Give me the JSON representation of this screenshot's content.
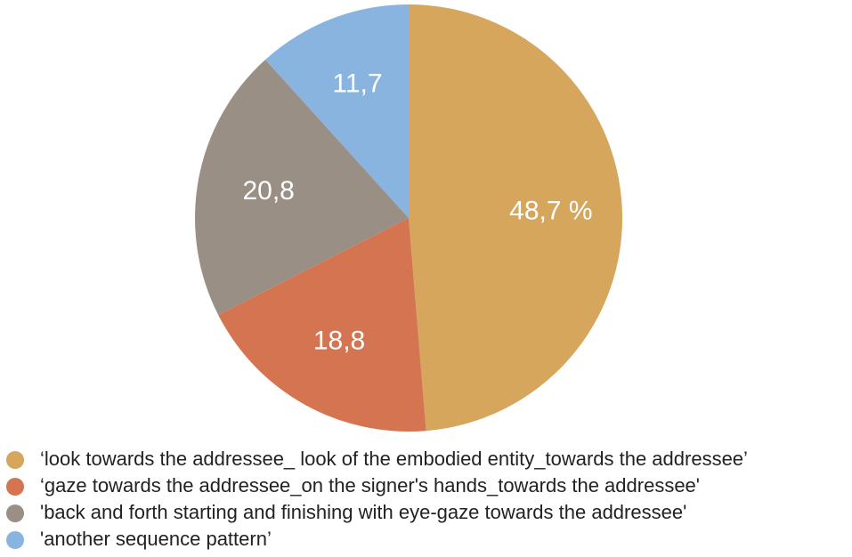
{
  "chart_data": {
    "type": "pie",
    "categories": [
      "‘look towards the addressee_ look of the embodied entity_towards the addressee’",
      "‘gaze towards the addressee_on the signer's hands_towards the addressee'",
      "'back and forth starting and finishing with eye-gaze towards the addressee'",
      "'another sequence pattern’"
    ],
    "values": [
      48.7,
      18.8,
      20.8,
      11.7
    ],
    "value_labels": [
      "48,7 %",
      "18,8",
      "20,8",
      "11,7"
    ],
    "colors": [
      "#d5a65c",
      "#d47450",
      "#998f84",
      "#8ab4e0"
    ]
  }
}
